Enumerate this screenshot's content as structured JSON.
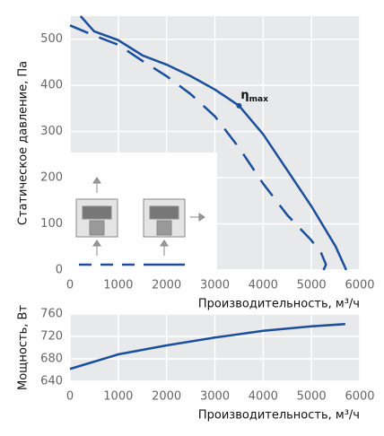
{
  "chart_data": [
    {
      "type": "line",
      "x_label": "Производительность, м³/ч",
      "y_label": "Статическое давление, Па",
      "xlim": [
        0,
        6000
      ],
      "ylim": [
        0,
        550
      ],
      "xticks": [
        0,
        1000,
        2000,
        3000,
        4000,
        5000,
        6000
      ],
      "yticks": [
        0,
        100,
        200,
        300,
        400,
        500
      ],
      "grid": true,
      "series": [
        {
          "color": "#1a4f9c",
          "dash": false,
          "x": [
            220,
            500,
            1000,
            1500,
            2000,
            2500,
            3000,
            3500,
            4000,
            4500,
            5000,
            5500,
            5720
          ],
          "values": [
            550,
            517,
            498,
            465,
            445,
            420,
            391,
            356,
            294,
            216,
            138,
            51,
            0
          ]
        },
        {
          "color": "#1a4f9c",
          "dash": true,
          "x": [
            0,
            500,
            1000,
            1500,
            2000,
            2500,
            3000,
            3500,
            4000,
            4500,
            5000,
            5200,
            5300,
            5250
          ],
          "values": [
            530,
            508,
            488,
            453,
            420,
            381,
            333,
            265,
            187,
            119,
            64,
            37,
            12,
            0
          ]
        }
      ],
      "annotation": {
        "text": "η",
        "sub": "max",
        "x": 3500,
        "y": 356
      }
    },
    {
      "type": "line",
      "x_label": "Производительность, м³/ч",
      "y_label": "Мощность, Вт",
      "xlim": [
        0,
        6000
      ],
      "ylim": [
        640,
        760
      ],
      "xticks": [
        0,
        1000,
        2000,
        3000,
        4000,
        5000,
        6000
      ],
      "yticks": [
        640,
        680,
        720,
        760
      ],
      "grid": true,
      "series": [
        {
          "color": "#1a4f9c",
          "dash": false,
          "x": [
            0,
            1000,
            2000,
            3000,
            4000,
            5000,
            5700
          ],
          "values": [
            662,
            688,
            704,
            718,
            730,
            738,
            742
          ]
        }
      ]
    }
  ]
}
